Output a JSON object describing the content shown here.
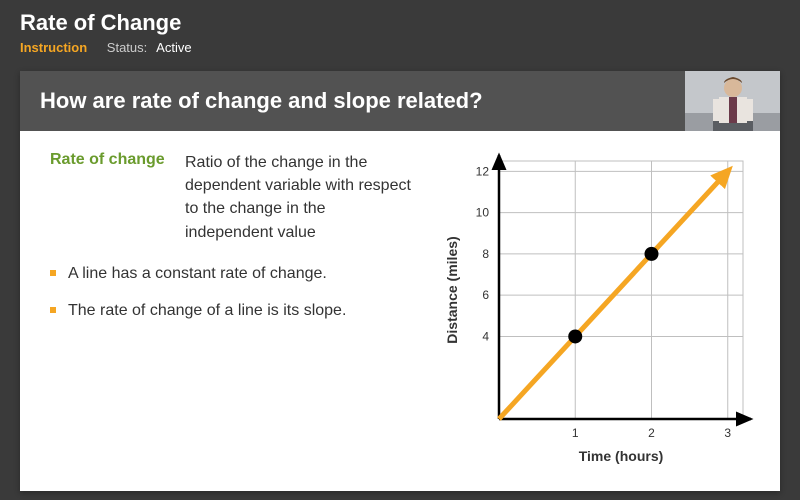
{
  "header": {
    "title": "Rate of Change",
    "instruction_label": "Instruction",
    "status_label": "Status:",
    "status_value": "Active"
  },
  "slide": {
    "question": "How are rate of change and slope related?",
    "definition": {
      "term": "Rate of change",
      "text": "Ratio of the change in the dependent variable with respect to the change in the independent value"
    },
    "bullets": [
      "A line has a constant rate of change.",
      "The rate of change of a line is its slope."
    ]
  },
  "chart": {
    "type": "line",
    "xlabel": "Time (hours)",
    "ylabel": "Distance (miles)",
    "xlim": [
      0,
      3.2
    ],
    "ylim": [
      0,
      12.5
    ],
    "xticks": [
      1,
      2,
      3
    ],
    "yticks": [
      4,
      6,
      8,
      10,
      12
    ],
    "grid_color": "#bfbfbf",
    "axis_color": "#000000",
    "background_color": "#ffffff",
    "label_fontsize": 14,
    "tick_fontsize": 12,
    "line": {
      "start": [
        0,
        0
      ],
      "end": [
        3.0,
        12
      ],
      "color": "#f5a623",
      "width": 5
    },
    "points": [
      {
        "x": 1,
        "y": 4,
        "color": "#000000",
        "radius": 7
      },
      {
        "x": 2,
        "y": 8,
        "color": "#000000",
        "radius": 7
      }
    ]
  },
  "colors": {
    "page_bg": "#3a3a3a",
    "banner_bg": "#525252",
    "accent_orange": "#f5a623",
    "term_green": "#6a9b2d"
  }
}
